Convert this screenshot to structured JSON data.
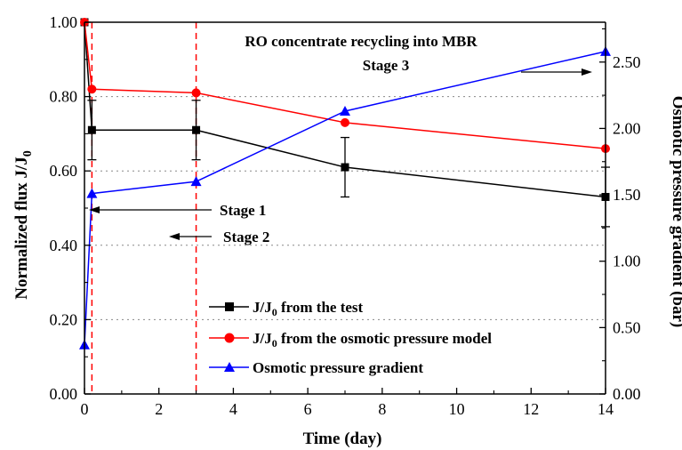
{
  "chart_data": {
    "type": "line",
    "xlabel": "Time (day)",
    "ylabel_left_main": "Normalized flux J/J",
    "ylabel_left_sub": "0",
    "ylabel_right": "Osmotic pressure gradient (bar)",
    "xlim": [
      0,
      14
    ],
    "ylim_left": [
      0,
      1
    ],
    "ylim_right": [
      0,
      2.8
    ],
    "x_ticks": [
      "0",
      "2",
      "4",
      "6",
      "8",
      "10",
      "12",
      "14"
    ],
    "y_left_ticks": [
      "0.00",
      "0.20",
      "0.40",
      "0.60",
      "0.80",
      "1.00"
    ],
    "y_right_ticks": [
      "0.00",
      "0.50",
      "1.00",
      "1.50",
      "2.00",
      "2.50"
    ],
    "grid": "horizontal-dotted",
    "legend_position": "bottom-left",
    "series": [
      {
        "name_main": "J/J",
        "name_sub": "0",
        "name_rest": " from the test",
        "axis": "left",
        "color": "#000000",
        "marker": "square",
        "points": [
          {
            "x": 0,
            "y": 1.0
          },
          {
            "x": 0.2,
            "y": 0.71,
            "err": 0.08
          },
          {
            "x": 3,
            "y": 0.71,
            "err": 0.08
          },
          {
            "x": 7,
            "y": 0.61,
            "err": 0.08
          },
          {
            "x": 14,
            "y": 0.53,
            "err": 0.08
          }
        ]
      },
      {
        "name_main": "J/J",
        "name_sub": "0",
        "name_rest": " from the osmotic pressure model",
        "axis": "left",
        "color": "#ff0000",
        "marker": "circle",
        "points": [
          {
            "x": 0,
            "y": 1.0
          },
          {
            "x": 0.2,
            "y": 0.82
          },
          {
            "x": 3,
            "y": 0.81
          },
          {
            "x": 7,
            "y": 0.73
          },
          {
            "x": 14,
            "y": 0.66
          }
        ]
      },
      {
        "name_main": "Osmotic pressure gradient",
        "name_sub": "",
        "name_rest": "",
        "axis": "right",
        "color": "#0000ff",
        "marker": "triangle",
        "points": [
          {
            "x": 0,
            "y": 0.37
          },
          {
            "x": 0.2,
            "y": 1.51
          },
          {
            "x": 3,
            "y": 1.6
          },
          {
            "x": 7,
            "y": 2.13
          },
          {
            "x": 14,
            "y": 2.58
          }
        ]
      }
    ],
    "stage_lines_x": [
      0.2,
      3
    ],
    "annotations": {
      "stage3_title": "RO concentrate recycling into MBR",
      "stage3": "Stage 3",
      "stage1": "Stage 1",
      "stage2": "Stage 2"
    }
  }
}
